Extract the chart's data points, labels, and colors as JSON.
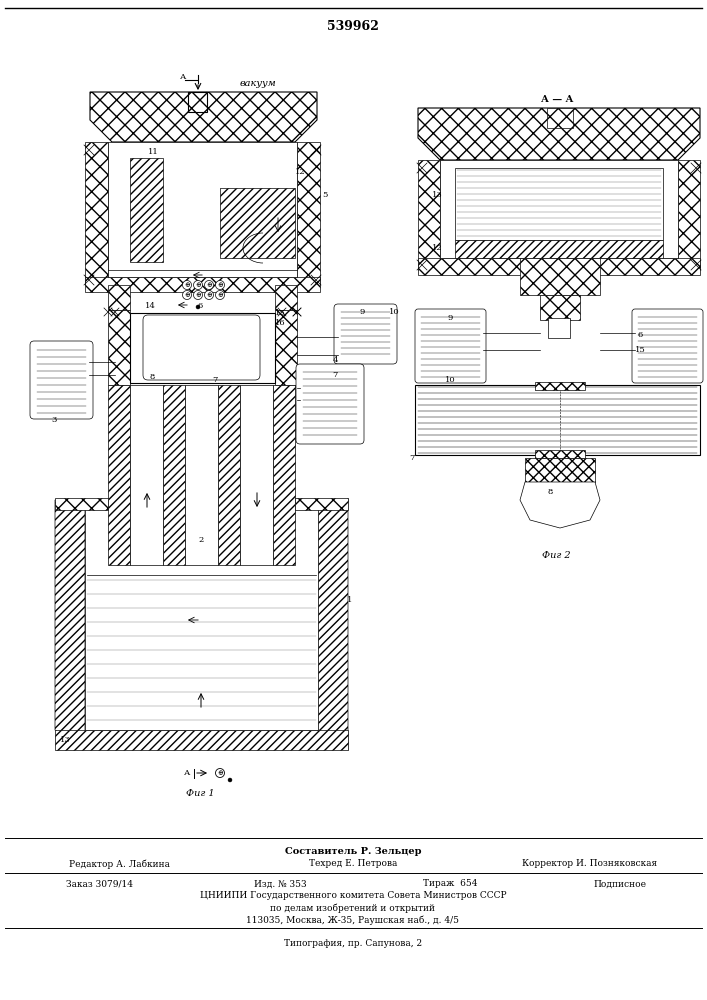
{
  "title": "539962",
  "fig1_label": "Фиг 1",
  "fig2_label": "Фиг 2",
  "vacuum_label": "вакуум",
  "section_label": "А — А",
  "footer_line1": "Составитель Р. Зельцер",
  "footer_ed": "Редактор А. Лабкина",
  "footer_tech": "Техред Е. Петрова",
  "footer_corr": "Корректор И. Позняковская",
  "footer_order": "Заказ 3079/14",
  "footer_izd": "Изд. № 353",
  "footer_tirazh": "Тираж  654",
  "footer_podp": "Подписное",
  "footer_org": "ЦНИИПИ Государственного комитета Совета Министров СССР",
  "footer_dep": "по делам изобретений и открытий",
  "footer_addr": "113035, Москва, Ж-35, Раушская наб., д. 4/5",
  "footer_typo": "Типография, пр. Сапунова, 2"
}
